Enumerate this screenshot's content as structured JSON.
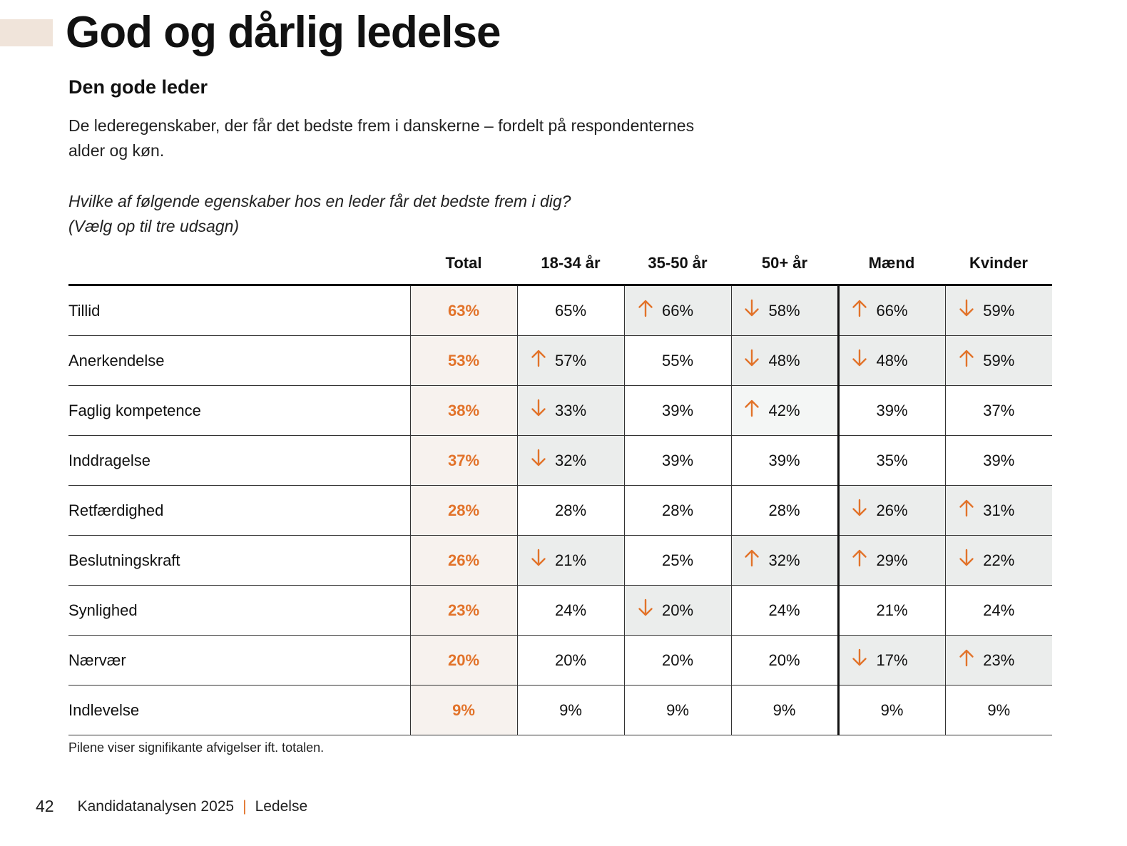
{
  "header": {
    "title": "God og dårlig ledelse",
    "subtitle": "Den gode leder",
    "description": "De lederegenskaber, der får det bedste frem i danskerne – fordelt på respondenternes alder og køn.",
    "question_line1": "Hvilke af følgende egenskaber hos en leder får det bedste frem i dig?",
    "question_line2": "(Vælg op til tre udsagn)"
  },
  "colors": {
    "accent": "#e2732a",
    "total_bg": "#f7f2ee",
    "shade": "#ebedec",
    "accent_bar": "#f0e4da"
  },
  "table": {
    "columns": [
      "Total",
      "18-34 år",
      "35-50 år",
      "50+ år",
      "Mænd",
      "Kvinder"
    ],
    "rows": [
      {
        "label": "Tillid",
        "total": "63%",
        "cells": [
          {
            "value": "65%",
            "arrow": ""
          },
          {
            "value": "66%",
            "arrow": "up"
          },
          {
            "value": "58%",
            "arrow": "down"
          },
          {
            "value": "66%",
            "arrow": "up"
          },
          {
            "value": "59%",
            "arrow": "down"
          }
        ]
      },
      {
        "label": "Anerkendelse",
        "total": "53%",
        "cells": [
          {
            "value": "57%",
            "arrow": "up"
          },
          {
            "value": "55%",
            "arrow": ""
          },
          {
            "value": "48%",
            "arrow": "down"
          },
          {
            "value": "48%",
            "arrow": "down"
          },
          {
            "value": "59%",
            "arrow": "up"
          }
        ]
      },
      {
        "label": "Faglig kompetence",
        "total": "38%",
        "cells": [
          {
            "value": "33%",
            "arrow": "down"
          },
          {
            "value": "39%",
            "arrow": ""
          },
          {
            "value": "42%",
            "arrow": "up"
          },
          {
            "value": "39%",
            "arrow": ""
          },
          {
            "value": "37%",
            "arrow": ""
          }
        ]
      },
      {
        "label": "Inddragelse",
        "total": "37%",
        "cells": [
          {
            "value": "32%",
            "arrow": "down"
          },
          {
            "value": "39%",
            "arrow": ""
          },
          {
            "value": "39%",
            "arrow": ""
          },
          {
            "value": "35%",
            "arrow": ""
          },
          {
            "value": "39%",
            "arrow": ""
          }
        ]
      },
      {
        "label": "Retfærdighed",
        "total": "28%",
        "cells": [
          {
            "value": "28%",
            "arrow": ""
          },
          {
            "value": "28%",
            "arrow": ""
          },
          {
            "value": "28%",
            "arrow": ""
          },
          {
            "value": "26%",
            "arrow": "down"
          },
          {
            "value": "31%",
            "arrow": "up"
          }
        ]
      },
      {
        "label": "Beslutningskraft",
        "total": "26%",
        "cells": [
          {
            "value": "21%",
            "arrow": "down"
          },
          {
            "value": "25%",
            "arrow": ""
          },
          {
            "value": "32%",
            "arrow": "up"
          },
          {
            "value": "29%",
            "arrow": "up"
          },
          {
            "value": "22%",
            "arrow": "down"
          }
        ]
      },
      {
        "label": "Synlighed",
        "total": "23%",
        "cells": [
          {
            "value": "24%",
            "arrow": ""
          },
          {
            "value": "20%",
            "arrow": "down"
          },
          {
            "value": "24%",
            "arrow": ""
          },
          {
            "value": "21%",
            "arrow": ""
          },
          {
            "value": "24%",
            "arrow": ""
          }
        ]
      },
      {
        "label": "Nærvær",
        "total": "20%",
        "cells": [
          {
            "value": "20%",
            "arrow": ""
          },
          {
            "value": "20%",
            "arrow": ""
          },
          {
            "value": "20%",
            "arrow": ""
          },
          {
            "value": "17%",
            "arrow": "down"
          },
          {
            "value": "23%",
            "arrow": "up"
          }
        ]
      },
      {
        "label": "Indlevelse",
        "total": "9%",
        "cells": [
          {
            "value": "9%",
            "arrow": ""
          },
          {
            "value": "9%",
            "arrow": ""
          },
          {
            "value": "9%",
            "arrow": ""
          },
          {
            "value": "9%",
            "arrow": ""
          },
          {
            "value": "9%",
            "arrow": ""
          }
        ]
      }
    ]
  },
  "note": "Pilene viser signifikante afvigelser ift. totalen.",
  "footer": {
    "page_number": "42",
    "publication": "Kandidatanalysen 2025",
    "separator": "|",
    "section": "Ledelse"
  }
}
